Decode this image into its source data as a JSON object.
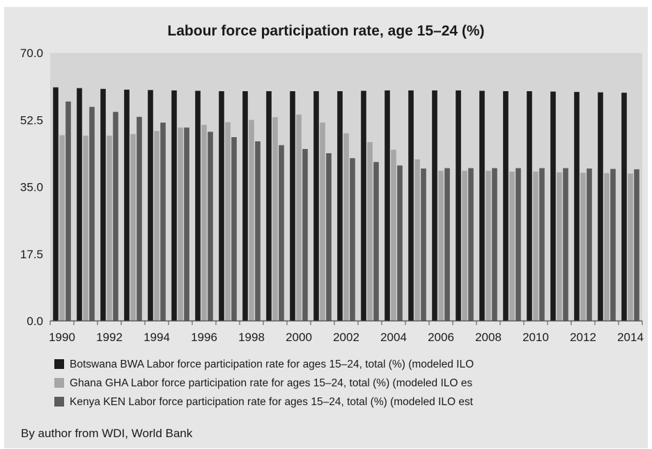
{
  "chart_data": {
    "type": "bar",
    "title": "Labour force participation rate, age 15–24 (%)",
    "xlabel": "",
    "ylabel": "",
    "ylim": [
      0,
      70
    ],
    "yticks": [
      "0.0",
      "17.5",
      "35.0",
      "52.5",
      "70.0"
    ],
    "ytick_values": [
      0,
      17.5,
      35,
      52.5,
      70
    ],
    "categories": [
      "1990",
      "1991",
      "1992",
      "1993",
      "1994",
      "1995",
      "1996",
      "1997",
      "1998",
      "1999",
      "2000",
      "2001",
      "2002",
      "2003",
      "2004",
      "2005",
      "2006",
      "2007",
      "2008",
      "2009",
      "2010",
      "2011",
      "2012",
      "2013",
      "2014"
    ],
    "xtick_labels": [
      "1990",
      "1992",
      "1994",
      "1996",
      "1998",
      "2000",
      "2002",
      "2004",
      "2006",
      "2008",
      "2010",
      "2012",
      "2014"
    ],
    "grid": false,
    "legend_placement": "bottom",
    "series": [
      {
        "name": "Botswana BWA Labor force participation rate for ages 15–24, total (%) (modeled ILO",
        "color": "#1c1c1c",
        "values": [
          61.0,
          60.8,
          60.6,
          60.4,
          60.3,
          60.2,
          60.1,
          60.0,
          60.0,
          60.0,
          60.0,
          60.0,
          60.0,
          60.1,
          60.2,
          60.2,
          60.2,
          60.2,
          60.1,
          60.0,
          60.0,
          59.9,
          59.8,
          59.7,
          59.6
        ]
      },
      {
        "name": "Ghana GHA Labor force participation rate for ages 15–24, total (%) (modeled ILO es",
        "color": "#a6a6a6",
        "values": [
          48.5,
          48.4,
          48.4,
          48.8,
          49.6,
          50.5,
          51.2,
          51.9,
          52.5,
          53.2,
          53.9,
          51.8,
          49.0,
          46.7,
          44.7,
          42.2,
          39.2,
          39.2,
          39.2,
          39.0,
          39.0,
          38.8,
          38.7,
          38.6,
          38.5
        ]
      },
      {
        "name": "Kenya KEN Labor force participation rate for ages 15–24, total (%) (modeled ILO est",
        "color": "#5c5c5c",
        "values": [
          57.3,
          55.9,
          54.6,
          53.3,
          51.8,
          50.5,
          49.4,
          48.0,
          46.9,
          45.9,
          44.9,
          43.8,
          42.5,
          41.5,
          40.6,
          39.8,
          39.9,
          39.9,
          39.9,
          39.9,
          39.9,
          39.9,
          39.8,
          39.7,
          39.6
        ]
      }
    ],
    "source": "By author from WDI, World Bank"
  }
}
